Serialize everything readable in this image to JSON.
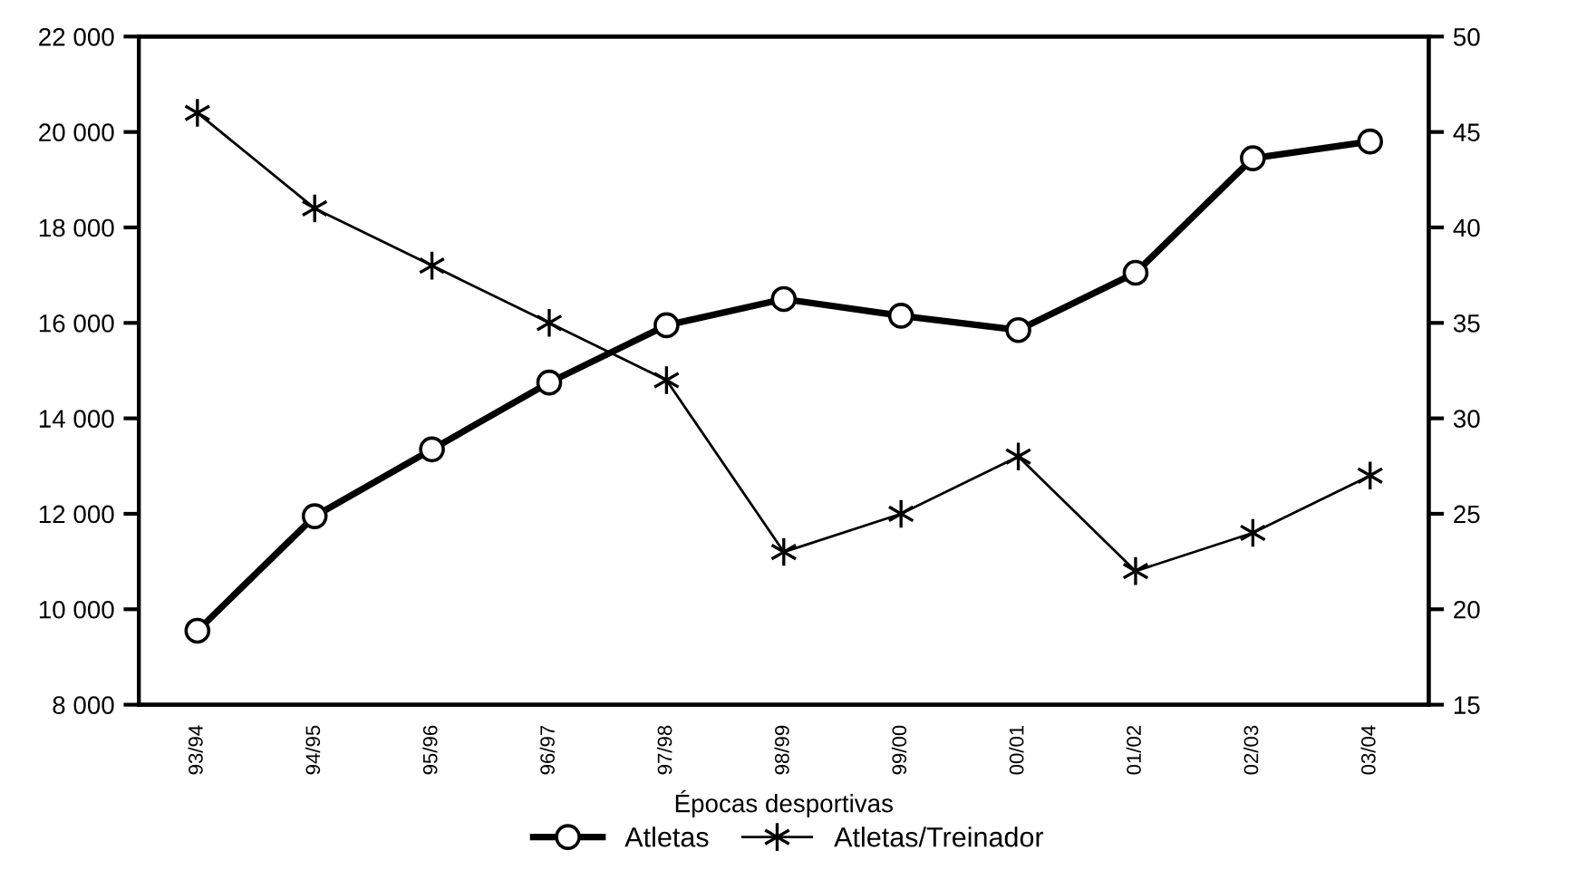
{
  "chart_data": {
    "type": "line",
    "xlabel": "Épocas desportivas",
    "categories": [
      "93/94",
      "94/95",
      "95/96",
      "96/97",
      "97/98",
      "98/99",
      "99/00",
      "00/01",
      "01/02",
      "02/03",
      "03/04"
    ],
    "series": [
      {
        "name": "Atletas",
        "color": "#000000",
        "marker": "circle",
        "values": [
          9550,
          11950,
          13350,
          14750,
          15950,
          16500,
          16150,
          15850,
          17050,
          19450,
          19800
        ]
      },
      {
        "name": "Atletas/Treinador",
        "color": "#000000",
        "marker": "cross",
        "axis": "y2",
        "values": [
          46,
          41,
          38,
          35,
          32,
          23,
          25,
          28,
          22,
          24,
          27
        ]
      }
    ],
    "ylim": [
      8000,
      22000
    ],
    "yticks": [
      {
        "value": 8000,
        "label": "8 000"
      },
      {
        "value": 10000,
        "label": "10 000"
      },
      {
        "value": 12000,
        "label": "12 000"
      },
      {
        "value": 14000,
        "label": "14 000"
      },
      {
        "value": 16000,
        "label": "16 000"
      },
      {
        "value": 18000,
        "label": "18 000"
      },
      {
        "value": 20000,
        "label": "20 000"
      },
      {
        "value": 22000,
        "label": "22 000"
      }
    ],
    "y2lim": [
      15,
      50
    ],
    "y2ticks": [
      15,
      20,
      25,
      30,
      35,
      40,
      45,
      50
    ],
    "grid": false,
    "legend": "bottom",
    "line_style": "solid"
  }
}
